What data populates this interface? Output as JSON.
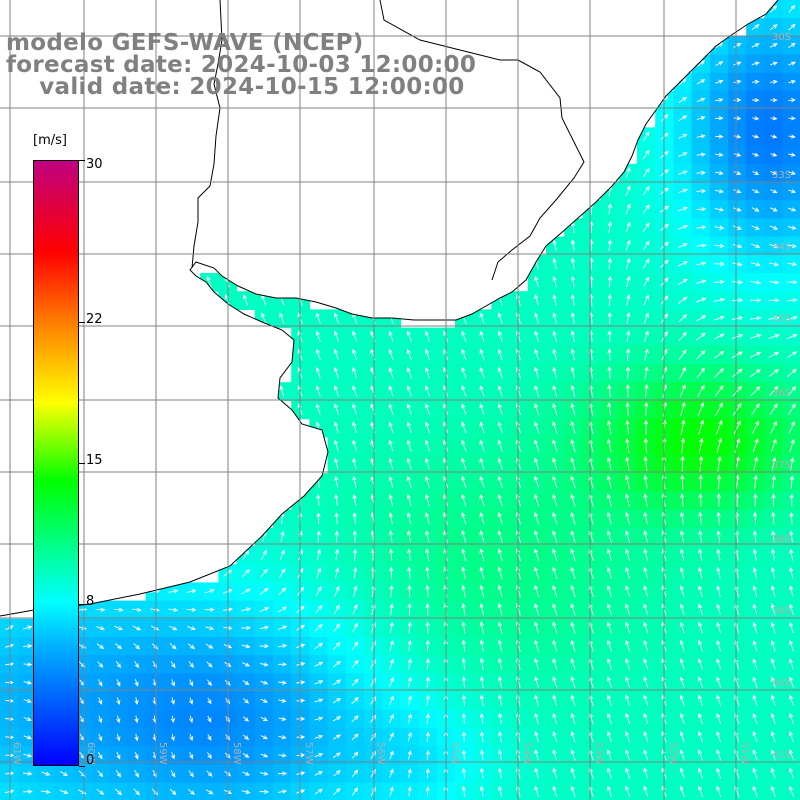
{
  "title": {
    "line1": "modelo GEFS-WAVE (NCEP)",
    "line2": "forecast date: 2024-10-03 12:00:00",
    "line3": "    valid date: 2024-10-15 12:00:00",
    "color": "#808080"
  },
  "colorbar": {
    "unit": "[m/s]",
    "ticks": [
      "30",
      "22",
      "15",
      "8",
      "0"
    ],
    "tick_values": [
      30,
      22,
      15,
      8,
      0
    ],
    "min": 0,
    "max": 30,
    "colors": [
      "#0000ff",
      "#00b4ff",
      "#00ffff",
      "#00ff00",
      "#ffff00",
      "#ff8000",
      "#ff0000",
      "#c00080"
    ],
    "color_stops": [
      0,
      0.2,
      0.27,
      0.47,
      0.6,
      0.73,
      0.85,
      1.0
    ]
  },
  "grid": {
    "lat_labels": [
      "30S",
      "33S",
      "34S",
      "35S",
      "36S",
      "37S",
      "38S",
      "39S",
      "40S",
      "41S"
    ],
    "lon_labels": [
      "61W",
      "60W",
      "59W",
      "58W",
      "57W",
      "56W",
      "55W",
      "54W",
      "53W",
      "52W",
      "51W"
    ],
    "line_color": "#808080"
  },
  "map": {
    "land_color": "#ffffff",
    "coast_color": "#000000",
    "arrow_color": "#ffffff",
    "variable": "wind speed"
  }
}
